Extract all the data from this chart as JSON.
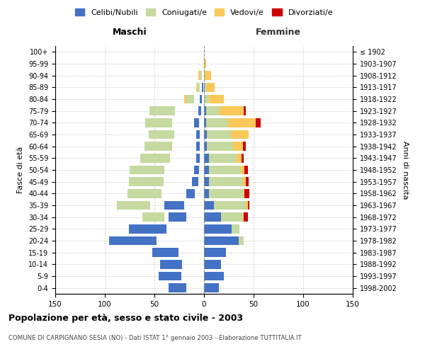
{
  "age_groups": [
    "0-4",
    "5-9",
    "10-14",
    "15-19",
    "20-24",
    "25-29",
    "30-34",
    "35-39",
    "40-44",
    "45-49",
    "50-54",
    "55-59",
    "60-64",
    "65-69",
    "70-74",
    "75-79",
    "80-84",
    "85-89",
    "90-94",
    "95-99",
    "100+"
  ],
  "birth_years": [
    "1998-2002",
    "1993-1997",
    "1988-1992",
    "1983-1987",
    "1978-1982",
    "1973-1977",
    "1968-1972",
    "1963-1967",
    "1958-1962",
    "1953-1957",
    "1948-1952",
    "1943-1947",
    "1938-1942",
    "1933-1937",
    "1928-1932",
    "1923-1927",
    "1918-1922",
    "1913-1917",
    "1908-1912",
    "1903-1907",
    "≤ 1902"
  ],
  "maschi": {
    "celibi": [
      18,
      23,
      22,
      26,
      48,
      38,
      18,
      20,
      9,
      6,
      5,
      4,
      4,
      4,
      5,
      3,
      2,
      1,
      0,
      0,
      0
    ],
    "coniugati": [
      0,
      0,
      0,
      0,
      4,
      10,
      22,
      34,
      34,
      35,
      35,
      30,
      28,
      26,
      27,
      26,
      8,
      3,
      2,
      0,
      0
    ],
    "vedovi": [
      0,
      0,
      0,
      0,
      1,
      2,
      0,
      0,
      0,
      1,
      2,
      0,
      2,
      2,
      3,
      8,
      5,
      2,
      2,
      0,
      0
    ],
    "divorziati": [
      0,
      0,
      0,
      0,
      0,
      0,
      2,
      3,
      5,
      3,
      0,
      2,
      4,
      1,
      0,
      0,
      0,
      0,
      1,
      0,
      0
    ]
  },
  "femmine": {
    "nubili": [
      15,
      20,
      17,
      22,
      35,
      28,
      17,
      10,
      5,
      5,
      5,
      5,
      3,
      3,
      2,
      2,
      0,
      1,
      0,
      0,
      0
    ],
    "coniugate": [
      0,
      0,
      0,
      0,
      5,
      8,
      22,
      32,
      35,
      34,
      32,
      28,
      26,
      24,
      22,
      14,
      5,
      2,
      1,
      0,
      0
    ],
    "vedove": [
      0,
      0,
      0,
      0,
      0,
      0,
      1,
      2,
      1,
      3,
      4,
      5,
      10,
      18,
      28,
      24,
      15,
      8,
      6,
      2,
      0
    ],
    "divorziate": [
      0,
      0,
      0,
      0,
      0,
      0,
      4,
      2,
      5,
      3,
      3,
      2,
      3,
      0,
      5,
      2,
      0,
      0,
      0,
      0,
      0
    ]
  },
  "colors": {
    "celibi": "#4472C4",
    "coniugati": "#C5D9A0",
    "vedovi": "#FAC858",
    "divorziati": "#CC0000"
  },
  "xlim": 150,
  "title": "Popolazione per età, sesso e stato civile - 2003",
  "subtitle": "COMUNE DI CARPIGNANO SESIA (NO) - Dati ISTAT 1° gennaio 2003 - Elaborazione TUTTITALIA.IT",
  "ylabel_left": "Fasce di età",
  "ylabel_right": "Anni di nascita",
  "xlabel_left": "Maschi",
  "xlabel_right": "Femmine",
  "legend_labels": [
    "Celibi/Nubili",
    "Coniugati/e",
    "Vedovi/e",
    "Divorziati/e"
  ],
  "bg_color": "#ffffff",
  "grid_color": "#cccccc"
}
